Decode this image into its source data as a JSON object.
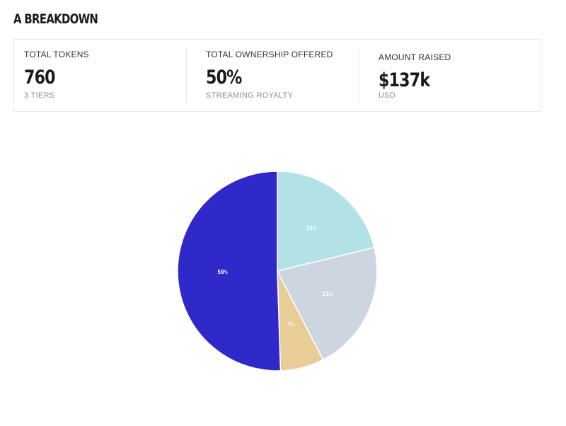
{
  "header": {
    "title": "A BREAKDOWN"
  },
  "stats": [
    {
      "label": "TOTAL TOKENS",
      "value": "760",
      "sub": "3 TIERS"
    },
    {
      "label": "TOTAL OWNERSHIP OFFERED",
      "value": "50%",
      "sub": "STREAMING ROYALTY"
    },
    {
      "label": "AMOUNT RAISED",
      "value": "$137k",
      "sub": "USD"
    }
  ],
  "chart_data": {
    "type": "pie",
    "slices": [
      {
        "value": 21,
        "label": "21%",
        "color": "#b2e2e8"
      },
      {
        "value": 21,
        "label": "21%",
        "color": "#cdd6e0"
      },
      {
        "value": 7,
        "label": "7%",
        "color": "#e8cd98"
      },
      {
        "value": 50,
        "label": "50%",
        "color": "#3029c9"
      }
    ]
  }
}
